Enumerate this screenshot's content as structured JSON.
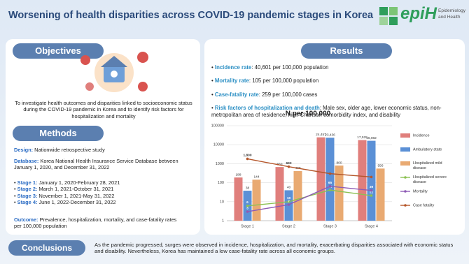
{
  "header": {
    "title": "Worsening of health disparities across COVID-19 pandemic stages in Korea",
    "logo": "epiH",
    "journal_line1": "Epidemiology",
    "journal_line2": "and Health"
  },
  "objectives": {
    "heading": "Objectives",
    "text": "To investigate health outcomes and disparities linked to socioeconomic status during the COVID-19 pandemic in Korea and to identify risk factors for hospitalization and mortality"
  },
  "methods": {
    "heading": "Methods",
    "design": {
      "label": "Design:",
      "text": "Nationwide retrospective study"
    },
    "database": {
      "label": "Database:",
      "text": "Korea National Health Insurance Service Database between January 1, 2020, and December 31, 2022"
    },
    "stages": [
      {
        "label": "Stage 1:",
        "text": "January 1, 2020-February 28, 2021"
      },
      {
        "label": "Stage 2:",
        "text": "March 1, 2021-October 31, 2021"
      },
      {
        "label": "Stage 3:",
        "text": "November 1, 2021-May 31, 2022"
      },
      {
        "label": "Stage 4:",
        "text": "June 1, 2022-December 31, 2022"
      }
    ],
    "outcome": {
      "label": "Outcome:",
      "text": "Prevalence, hospitalization, mortality, and case-fatality rates per 100,000 population"
    }
  },
  "results": {
    "heading": "Results",
    "bullets": [
      {
        "label": "Incidence rate",
        "text": ": 40,601 per 100,000 population"
      },
      {
        "label": "Mortality rate",
        "text": ": 105 per 100,000 population"
      },
      {
        "label": "Case-fatality rate",
        "text": ": 259 per 100,000 cases"
      },
      {
        "label": "Risk factors of hospitalization and death",
        "text": ": Male sex, older age, lower economic status, non-metropolitan area of residence, high Charlson comorbidity index, and disability"
      }
    ]
  },
  "chart_data": {
    "type": "bar",
    "title": "N per 100,000",
    "log_scale": true,
    "categories": [
      "Stage 1",
      "Stage 2",
      "Stage 3",
      "Stage 4"
    ],
    "ylim": [
      1,
      100000
    ],
    "yticks": [
      1,
      10,
      100,
      1000,
      10000,
      100000
    ],
    "grid": true,
    "legend": "right",
    "series": [
      {
        "name": "Incidence",
        "type": "bar",
        "color": "#e07f7c",
        "values": [
          188,
          669,
          24457,
          17529
        ],
        "value_labels": [
          "188",
          "669",
          "24,457",
          "17,529"
        ]
      },
      {
        "name": "Ambulatory state",
        "type": "bar",
        "color": "#5b90d6",
        "values": [
          38,
          40,
          23436,
          16082
        ],
        "value_labels": [
          "38",
          "40",
          "23,436",
          "16,082"
        ]
      },
      {
        "name": "Hospitalized mild disease",
        "type": "bar",
        "color": "#e9aa72",
        "values": [
          144,
          409,
          800,
          556
        ],
        "value_labels": [
          "144",
          "409",
          "800",
          "556"
        ]
      },
      {
        "name": "Hospitalized severe disease",
        "type": "line",
        "color": "#8cc152",
        "values": [
          6,
          10,
          41,
          21
        ],
        "value_labels": [
          "6",
          "10",
          "41",
          "21"
        ]
      },
      {
        "name": "Mortality",
        "type": "line",
        "color": "#8e5bb5",
        "values": [
          3,
          7,
          65,
          39
        ],
        "value_labels": [
          "3",
          "7",
          "65",
          "39"
        ]
      },
      {
        "name": "Case fatality",
        "type": "line",
        "color": "#b5562a",
        "values": [
          1800,
          693,
          300,
          200
        ],
        "value_labels": [
          "1,800",
          "693",
          null,
          null
        ]
      }
    ]
  },
  "conclusions": {
    "heading": "Conclusions",
    "text": "As the pandemic progressed, surges were observed in incidence, hospitalization, and mortality, exacerbating disparities associated with economic status and disability. Nevertheless, Korea has maintained a low case-fatality rate across all economic groups."
  }
}
